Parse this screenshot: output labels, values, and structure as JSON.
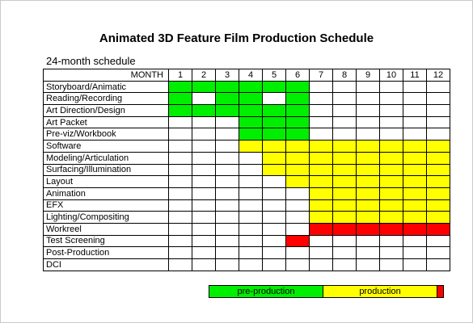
{
  "title": "Animated 3D Feature Film Production Schedule",
  "subtitle": "24-month schedule",
  "header": {
    "month_label": "MONTH",
    "months": [
      "1",
      "2",
      "3",
      "4",
      "5",
      "6",
      "7",
      "8",
      "9",
      "10",
      "11",
      "12"
    ]
  },
  "colors": {
    "pre_production": "#00ee00",
    "production": "#ffff00",
    "workreel": "#ff0000",
    "empty": "#ffffff"
  },
  "tasks": [
    {
      "name": "Storyboard/Animatic",
      "cells": [
        "G",
        "G",
        "G",
        "G",
        "G",
        "G",
        "",
        "",
        "",
        "",
        "",
        ""
      ]
    },
    {
      "name": "Reading/Recording",
      "cells": [
        "G",
        "",
        "G",
        "G",
        "",
        "G",
        "",
        "",
        "",
        "",
        "",
        ""
      ]
    },
    {
      "name": "Art Direction/Design",
      "cells": [
        "G",
        "G",
        "G",
        "G",
        "G",
        "G",
        "",
        "",
        "",
        "",
        "",
        ""
      ]
    },
    {
      "name": "Art Packet",
      "cells": [
        "",
        "",
        "",
        "G",
        "G",
        "G",
        "",
        "",
        "",
        "",
        "",
        ""
      ]
    },
    {
      "name": "Pre-viz/Workbook",
      "cells": [
        "",
        "",
        "",
        "G",
        "G",
        "G",
        "",
        "",
        "",
        "",
        "",
        ""
      ]
    },
    {
      "name": "Software",
      "cells": [
        "",
        "",
        "",
        "Y",
        "Y",
        "Y",
        "Y",
        "Y",
        "Y",
        "Y",
        "Y",
        "Y"
      ]
    },
    {
      "name": "Modeling/Articulation",
      "cells": [
        "",
        "",
        "",
        "",
        "Y",
        "Y",
        "Y",
        "Y",
        "Y",
        "Y",
        "Y",
        "Y"
      ]
    },
    {
      "name": "Surfacing/Illumination",
      "cells": [
        "",
        "",
        "",
        "",
        "Y",
        "Y",
        "Y",
        "Y",
        "Y",
        "Y",
        "Y",
        "Y"
      ]
    },
    {
      "name": "Layout",
      "cells": [
        "",
        "",
        "",
        "",
        "",
        "Y",
        "Y",
        "Y",
        "Y",
        "Y",
        "Y",
        "Y"
      ]
    },
    {
      "name": "Animation",
      "cells": [
        "",
        "",
        "",
        "",
        "",
        "",
        "Y",
        "Y",
        "Y",
        "Y",
        "Y",
        "Y"
      ]
    },
    {
      "name": "EFX",
      "cells": [
        "",
        "",
        "",
        "",
        "",
        "",
        "Y",
        "Y",
        "Y",
        "Y",
        "Y",
        "Y"
      ]
    },
    {
      "name": "Lighting/Compositing",
      "cells": [
        "",
        "",
        "",
        "",
        "",
        "",
        "Y",
        "Y",
        "Y",
        "Y",
        "Y",
        "Y"
      ]
    },
    {
      "name": "Workreel",
      "cells": [
        "",
        "",
        "",
        "",
        "",
        "",
        "R",
        "R",
        "R",
        "R",
        "R",
        "R"
      ]
    },
    {
      "name": "Test Screening",
      "cells": [
        "",
        "",
        "",
        "",
        "",
        "R",
        "",
        "",
        "",
        "",
        "",
        ""
      ]
    },
    {
      "name": "Post-Production",
      "cells": [
        "",
        "",
        "",
        "",
        "",
        "",
        "",
        "",
        "",
        "",
        "",
        ""
      ]
    },
    {
      "name": "DCI",
      "cells": [
        "",
        "",
        "",
        "",
        "",
        "",
        "",
        "",
        "",
        "",
        "",
        ""
      ]
    }
  ],
  "legend": [
    {
      "label": "pre-production",
      "color": "#00ee00",
      "share": 0.487
    },
    {
      "label": "production",
      "color": "#ffff00",
      "share": 0.487
    },
    {
      "label": "",
      "color": "#ff0000",
      "share": 0.026
    }
  ]
}
